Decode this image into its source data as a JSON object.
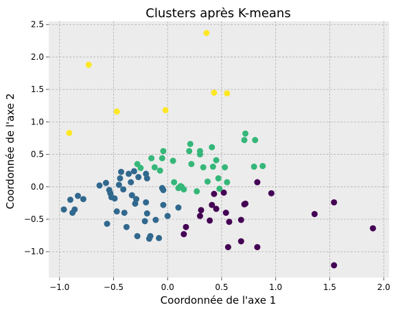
{
  "chart_data": {
    "type": "scatter",
    "title": "Clusters après K-means",
    "xlabel": "Coordonnée de l'axe 1",
    "ylabel": "Coordonnée de l'axe 2",
    "xlim": [
      -1.1,
      2.05
    ],
    "ylim": [
      -1.4,
      2.55
    ],
    "xticks": [
      -1.0,
      -0.5,
      0.0,
      0.5,
      1.0,
      1.5,
      2.0
    ],
    "xtick_labels": [
      "−1.0",
      "−0.5",
      "0.0",
      "0.5",
      "1.0",
      "1.5",
      "2.0"
    ],
    "yticks": [
      -1.0,
      -0.5,
      0.0,
      0.5,
      1.0,
      1.5,
      2.0,
      2.5
    ],
    "ytick_labels": [
      "−1.0",
      "−0.5",
      "0.0",
      "0.5",
      "1.0",
      "1.5",
      "2.0",
      "2.5"
    ],
    "grid": true,
    "background_color": "#ececec",
    "series": [
      {
        "color": "#440154",
        "points": [
          [
            0.17,
            -0.62
          ],
          [
            0.15,
            -0.73
          ],
          [
            0.3,
            -0.45
          ],
          [
            0.31,
            -0.36
          ],
          [
            0.41,
            -0.28
          ],
          [
            0.45,
            -0.34
          ],
          [
            0.52,
            -0.09
          ],
          [
            0.43,
            -0.11
          ],
          [
            0.54,
            -0.4
          ],
          [
            0.57,
            -0.54
          ],
          [
            0.56,
            -0.93
          ],
          [
            0.68,
            -0.51
          ],
          [
            0.68,
            -0.84
          ],
          [
            0.71,
            -0.27
          ],
          [
            0.72,
            -0.26
          ],
          [
            0.83,
            0.07
          ],
          [
            0.83,
            -0.93
          ],
          [
            0.96,
            -0.1
          ],
          [
            1.36,
            -0.42
          ],
          [
            1.54,
            -0.24
          ],
          [
            1.54,
            -1.21
          ],
          [
            1.9,
            -0.64
          ],
          [
            0.39,
            -0.52
          ]
        ]
      },
      {
        "color": "#31688e",
        "points": [
          [
            -0.96,
            -0.35
          ],
          [
            -0.9,
            -0.2
          ],
          [
            -0.88,
            -0.4
          ],
          [
            -0.86,
            -0.35
          ],
          [
            -0.83,
            -0.14
          ],
          [
            -0.78,
            -0.19
          ],
          [
            -0.63,
            0.02
          ],
          [
            -0.57,
            0.06
          ],
          [
            -0.56,
            -0.57
          ],
          [
            -0.54,
            -0.05
          ],
          [
            -0.53,
            -0.1
          ],
          [
            -0.52,
            -0.16
          ],
          [
            -0.49,
            -0.18
          ],
          [
            -0.47,
            -0.38
          ],
          [
            -0.45,
            0.03
          ],
          [
            -0.44,
            0.13
          ],
          [
            -0.43,
            0.23
          ],
          [
            -0.41,
            -0.04
          ],
          [
            -0.4,
            -0.4
          ],
          [
            -0.38,
            -0.62
          ],
          [
            -0.34,
            0.07
          ],
          [
            -0.33,
            -0.13
          ],
          [
            -0.31,
            0.24
          ],
          [
            -0.3,
            -0.26
          ],
          [
            -0.29,
            -0.19
          ],
          [
            -0.28,
            -0.76
          ],
          [
            -0.27,
            0.15
          ],
          [
            -0.2,
            0.2
          ],
          [
            -0.19,
            0.13
          ],
          [
            -0.2,
            -0.24
          ],
          [
            -0.19,
            -0.41
          ],
          [
            -0.17,
            -0.8
          ],
          [
            -0.16,
            -0.76
          ],
          [
            -0.11,
            -0.51
          ],
          [
            -0.08,
            -0.79
          ],
          [
            -0.05,
            -0.02
          ],
          [
            -0.04,
            -0.05
          ],
          [
            0.0,
            -0.45
          ],
          [
            0.1,
            -0.32
          ],
          [
            -0.21,
            -0.53
          ],
          [
            -0.36,
            0.2
          ],
          [
            -0.04,
            -0.28
          ]
        ]
      },
      {
        "color": "#35b779",
        "points": [
          [
            -0.28,
            0.35
          ],
          [
            -0.25,
            0.29
          ],
          [
            -0.15,
            0.44
          ],
          [
            -0.12,
            0.3
          ],
          [
            -0.07,
            0.25
          ],
          [
            -0.05,
            0.44
          ],
          [
            -0.04,
            0.55
          ],
          [
            0.05,
            0.4
          ],
          [
            0.06,
            0.07
          ],
          [
            0.1,
            -0.02
          ],
          [
            0.12,
            0.01
          ],
          [
            0.15,
            -0.04
          ],
          [
            0.2,
            0.55
          ],
          [
            0.21,
            0.66
          ],
          [
            0.22,
            0.35
          ],
          [
            0.27,
            -0.07
          ],
          [
            0.3,
            0.5
          ],
          [
            0.3,
            0.55
          ],
          [
            0.33,
            0.3
          ],
          [
            0.37,
            0.08
          ],
          [
            0.41,
            0.61
          ],
          [
            0.42,
            0.31
          ],
          [
            0.45,
            0.41
          ],
          [
            0.47,
            0.13
          ],
          [
            0.48,
            -0.03
          ],
          [
            0.53,
            0.3
          ],
          [
            0.55,
            0.07
          ],
          [
            0.71,
            0.72
          ],
          [
            0.72,
            0.82
          ],
          [
            0.8,
            0.31
          ],
          [
            0.81,
            0.72
          ],
          [
            0.88,
            0.32
          ],
          [
            0.13,
            0.0
          ]
        ]
      },
      {
        "color": "#fde725",
        "points": [
          [
            -0.91,
            0.83
          ],
          [
            -0.73,
            1.88
          ],
          [
            -0.47,
            1.16
          ],
          [
            -0.02,
            1.18
          ],
          [
            0.36,
            2.37
          ],
          [
            0.43,
            1.45
          ],
          [
            0.55,
            1.44
          ]
        ]
      }
    ]
  }
}
